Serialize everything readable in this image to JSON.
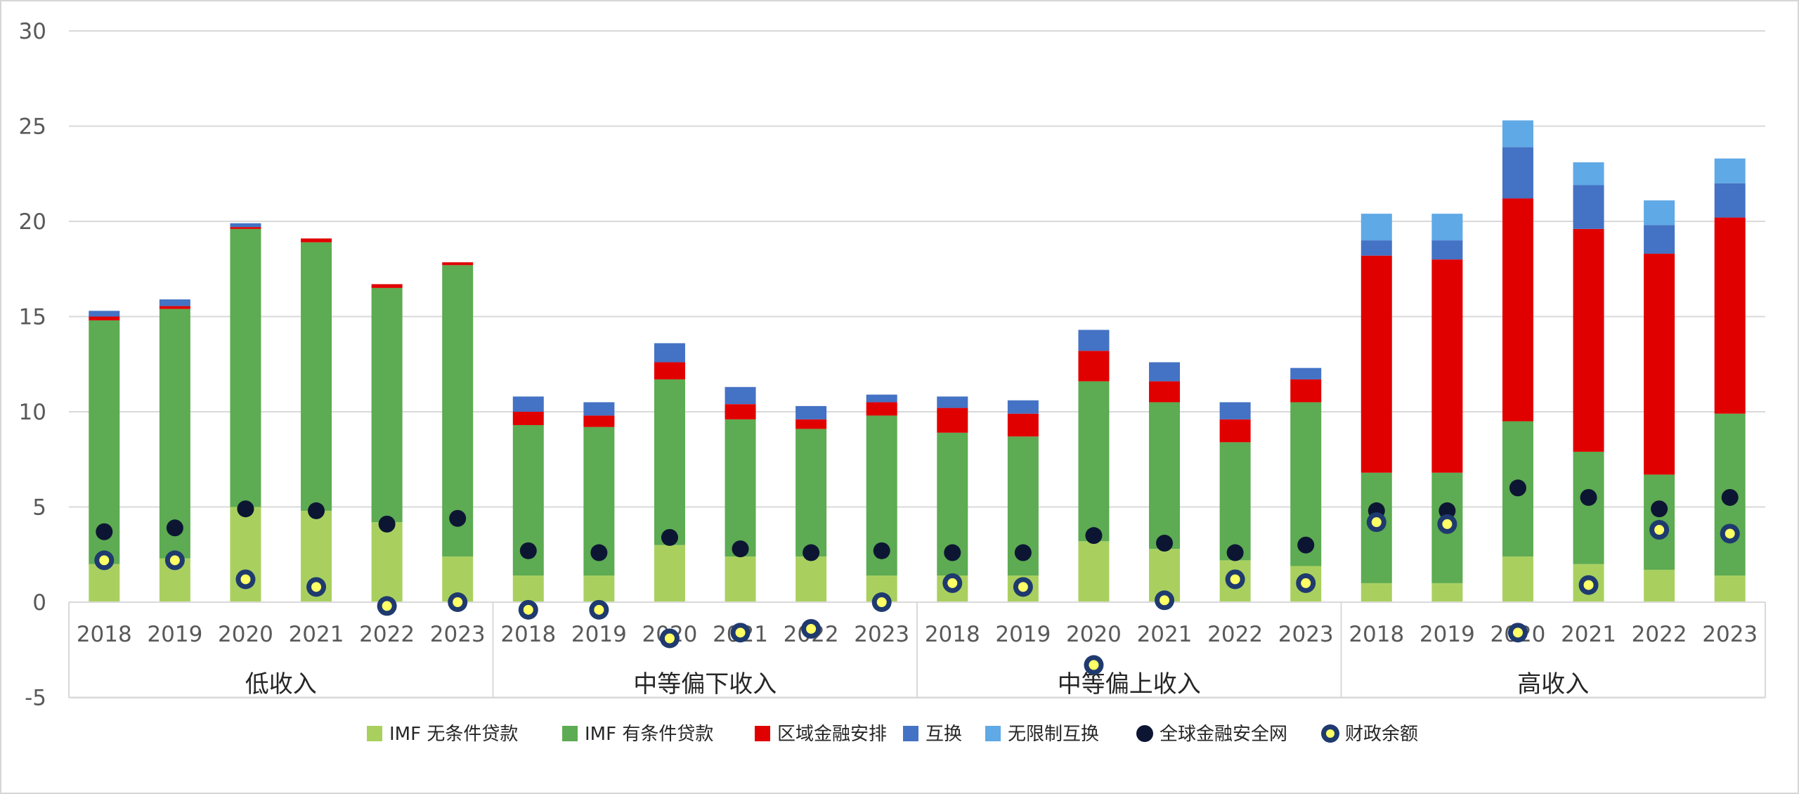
{
  "chart_data": {
    "type": "bar",
    "stacked": true,
    "title": "",
    "xlabel": "",
    "ylabel": "",
    "ylim": [
      -5,
      30
    ],
    "yticks": [
      -5,
      0,
      5,
      10,
      15,
      20,
      25,
      30
    ],
    "grid": "horizontal",
    "legend_position": "bottom",
    "groups": [
      {
        "label": "低收入",
        "years": [
          "2018",
          "2019",
          "2020",
          "2021",
          "2022",
          "2023"
        ]
      },
      {
        "label": "中等偏下收入",
        "years": [
          "2018",
          "2019",
          "2020",
          "2021",
          "2022",
          "2023"
        ]
      },
      {
        "label": "中等偏上收入",
        "years": [
          "2018",
          "2019",
          "2020",
          "2021",
          "2022",
          "2023"
        ]
      },
      {
        "label": "高收入",
        "years": [
          "2018",
          "2019",
          "2020",
          "2021",
          "2022",
          "2023"
        ]
      }
    ],
    "series": [
      {
        "name": "IMF 无条件贷款",
        "kind": "bar",
        "color": "#a9d05f",
        "values": [
          2.0,
          2.3,
          5.0,
          4.8,
          4.2,
          2.4,
          1.4,
          1.4,
          3.0,
          2.4,
          2.4,
          1.4,
          1.4,
          1.4,
          3.2,
          2.8,
          2.2,
          1.9,
          1.0,
          1.0,
          2.4,
          2.0,
          1.7,
          1.4
        ]
      },
      {
        "name": "IMF 有条件贷款",
        "kind": "bar",
        "color": "#5dab52",
        "values": [
          12.8,
          13.1,
          14.6,
          14.1,
          12.3,
          15.3,
          7.9,
          7.8,
          8.7,
          7.2,
          6.7,
          8.4,
          7.5,
          7.3,
          8.4,
          7.7,
          6.2,
          8.6,
          5.8,
          5.8,
          7.1,
          5.9,
          5.0,
          8.5
        ]
      },
      {
        "name": "区域金融安排",
        "kind": "bar",
        "color": "#e00000",
        "values": [
          0.2,
          0.15,
          0.1,
          0.2,
          0.2,
          0.15,
          0.7,
          0.6,
          0.9,
          0.8,
          0.5,
          0.7,
          1.3,
          1.2,
          1.6,
          1.1,
          1.2,
          1.2,
          11.4,
          11.2,
          11.7,
          11.7,
          11.6,
          10.3
        ]
      },
      {
        "name": "互换",
        "kind": "bar",
        "color": "#4472c4",
        "values": [
          0.3,
          0.35,
          0.2,
          0.0,
          0.0,
          0.0,
          0.8,
          0.7,
          1.0,
          0.9,
          0.7,
          0.4,
          0.6,
          0.7,
          1.1,
          1.0,
          0.9,
          0.6,
          0.8,
          1.0,
          2.7,
          2.3,
          1.5,
          1.8
        ]
      },
      {
        "name": "无限制互换",
        "kind": "bar",
        "color": "#5fa9e6",
        "values": [
          0,
          0,
          0,
          0,
          0,
          0,
          0,
          0,
          0,
          0,
          0,
          0,
          0,
          0,
          0,
          0,
          0,
          0,
          1.4,
          1.4,
          1.4,
          1.2,
          1.3,
          1.3
        ]
      },
      {
        "name": "全球金融安全网",
        "kind": "scatter",
        "color": "#0c1633",
        "values": [
          3.7,
          3.9,
          4.9,
          4.8,
          4.1,
          4.4,
          2.7,
          2.6,
          3.4,
          2.8,
          2.6,
          2.7,
          2.6,
          2.6,
          3.5,
          3.1,
          2.6,
          3.0,
          4.8,
          4.8,
          6.0,
          5.5,
          4.9,
          5.5
        ]
      },
      {
        "name": "财政余额",
        "kind": "scatter",
        "color": "#ffff66",
        "edge": "#1f3a6e",
        "values": [
          2.2,
          2.2,
          1.2,
          0.8,
          -0.2,
          0.0,
          -0.4,
          -0.4,
          -1.9,
          -1.6,
          -1.4,
          0.0,
          1.0,
          0.8,
          -3.3,
          0.1,
          1.2,
          1.0,
          4.2,
          4.1,
          -1.6,
          0.9,
          3.8,
          3.6
        ]
      }
    ]
  }
}
